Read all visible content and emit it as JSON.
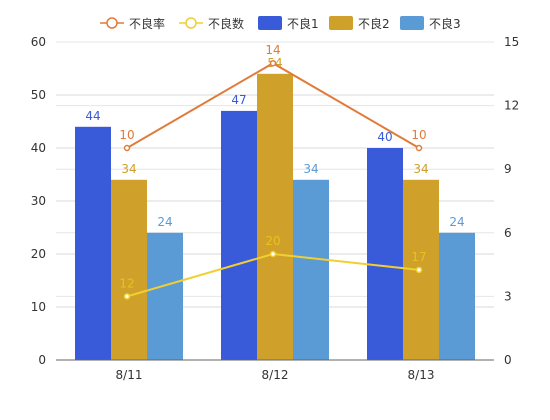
{
  "chart_data": {
    "type": "bar",
    "categories": [
      "8/11",
      "8/12",
      "8/13"
    ],
    "series": [
      {
        "name": "不良1",
        "values": [
          44,
          47,
          40
        ],
        "color": "#3a5bd9",
        "axis": "left"
      },
      {
        "name": "不良2",
        "values": [
          34,
          54,
          34
        ],
        "color": "#d0a12a",
        "axis": "left"
      },
      {
        "name": "不良3",
        "values": [
          24,
          34,
          24
        ],
        "color": "#5b9bd5",
        "axis": "left"
      }
    ],
    "line_series": [
      {
        "name": "不良率",
        "values": [
          10,
          14,
          10
        ],
        "color": "#e07b39",
        "label_color": "#e07b39",
        "axis": "right"
      },
      {
        "name": "不良数",
        "values": [
          12,
          20,
          17
        ],
        "color": "#f0d030",
        "label_color": "#e8c020",
        "axis": "left"
      }
    ],
    "legend_order": [
      "不良率",
      "不良数",
      "不良1",
      "不良2",
      "不良3"
    ],
    "left_axis": {
      "min": 0,
      "max": 60,
      "ticks": [
        0,
        10,
        20,
        30,
        40,
        50,
        60
      ]
    },
    "right_axis": {
      "min": 0,
      "max": 15,
      "ticks": [
        0,
        3,
        6,
        9,
        12,
        15
      ]
    },
    "grid": true,
    "legend_position": "top",
    "title": "",
    "xlabel": "",
    "ylabel": ""
  }
}
